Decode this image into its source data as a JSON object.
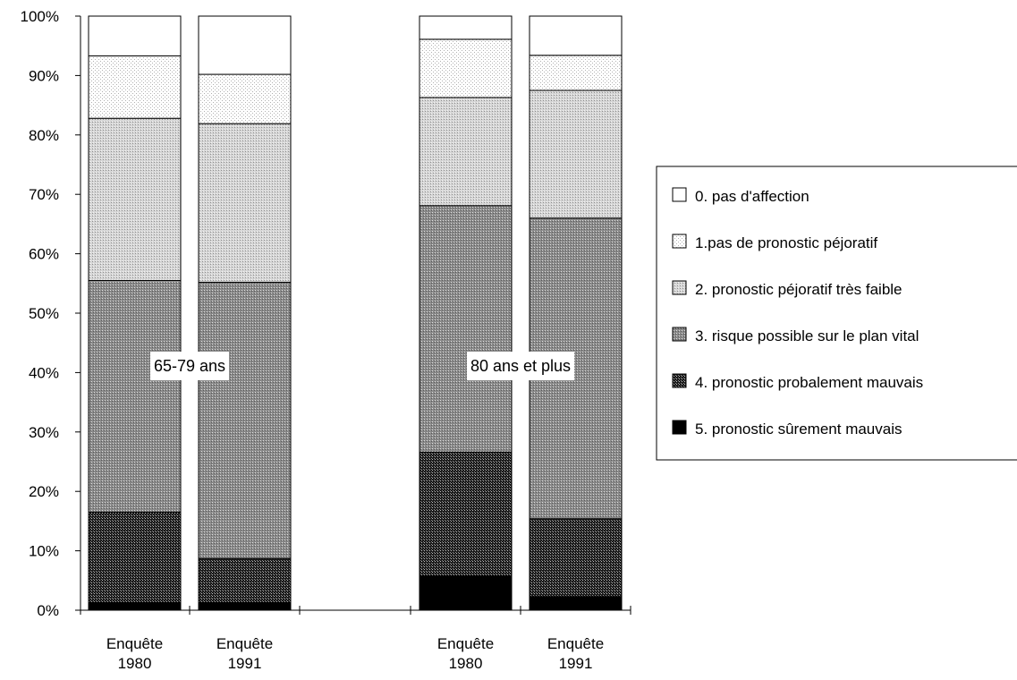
{
  "chart_data": {
    "type": "bar",
    "stacked": "percent",
    "ylim": [
      0,
      100
    ],
    "yticks": [
      "0%",
      "10%",
      "20%",
      "30%",
      "40%",
      "50%",
      "60%",
      "70%",
      "80%",
      "90%",
      "100%"
    ],
    "groups": [
      {
        "label": "65-79 ans",
        "bars": [
          {
            "label": [
              "Enquête",
              "1980"
            ],
            "values": [
              1.3,
              15.2,
              39.0,
              27.3,
              10.5,
              6.7
            ]
          },
          {
            "label": [
              "Enquête",
              "1991"
            ],
            "values": [
              1.3,
              7.4,
              46.5,
              26.7,
              8.3,
              9.8
            ]
          }
        ]
      },
      {
        "label": "80 ans et plus",
        "bars": [
          {
            "label": [
              "Enquête",
              "1980"
            ],
            "values": [
              5.8,
              20.8,
              41.5,
              18.2,
              9.8,
              3.9
            ]
          },
          {
            "label": [
              "Enquête",
              "1991"
            ],
            "values": [
              2.3,
              13.1,
              50.6,
              21.5,
              5.9,
              6.6
            ]
          }
        ]
      }
    ],
    "series": [
      {
        "name": "5. pronostic sûrement mauvais",
        "color": "#000000"
      },
      {
        "name": "4. pronostic probalement mauvais",
        "color": "#3a3a3a"
      },
      {
        "name": "3. risque possible sur le plan vital",
        "color": "#9c9c9c"
      },
      {
        "name": "2. pronostic péjoratif très faible",
        "color": "#cecece"
      },
      {
        "name": "1.pas de pronostic péjoratif",
        "color": "#eaeaea"
      },
      {
        "name": "0. pas d'affection",
        "color": "#ffffff"
      }
    ],
    "legend_position": "right"
  }
}
